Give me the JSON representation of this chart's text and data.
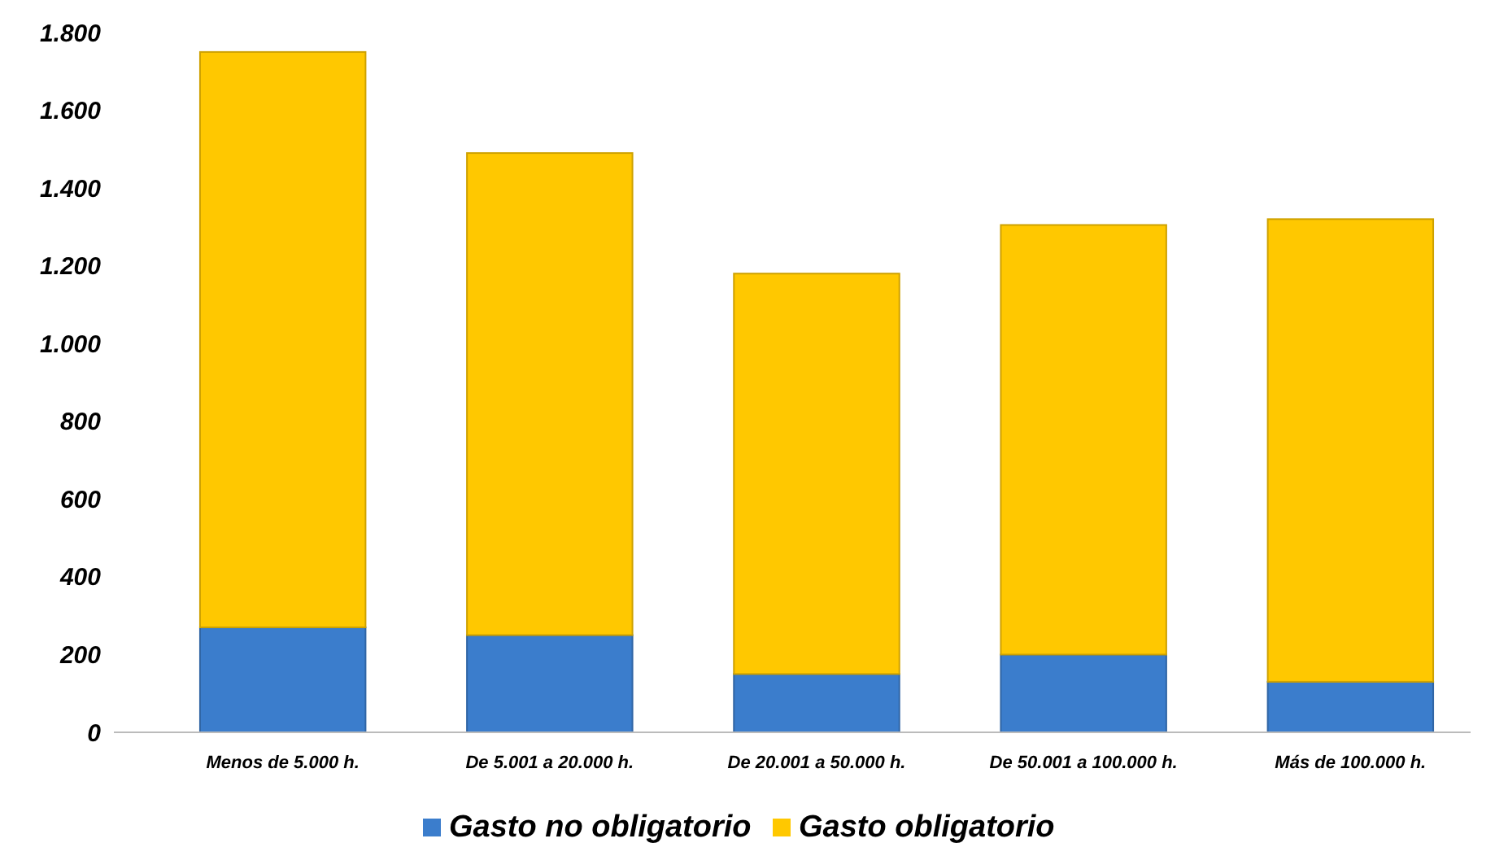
{
  "chart_data": {
    "type": "bar",
    "stacked": true,
    "categories": [
      "Menos de 5.000 h.",
      "De 5.001 a 20.000 h.",
      "De 20.001 a 50.000 h.",
      "De 50.001 a 100.000 h.",
      "Más de 100.000 h."
    ],
    "series": [
      {
        "name": "Gasto no obligatorio",
        "color": "#3b7dcc",
        "values": [
          270,
          250,
          150,
          200,
          130
        ]
      },
      {
        "name": "Gasto obligatorio",
        "color": "#ffc800",
        "values": [
          1480,
          1240,
          1030,
          1105,
          1190
        ]
      }
    ],
    "ylim": [
      0,
      1800
    ],
    "yticks": [
      {
        "value": 0,
        "label": "0"
      },
      {
        "value": 200,
        "label": "200"
      },
      {
        "value": 400,
        "label": "400"
      },
      {
        "value": 600,
        "label": "600"
      },
      {
        "value": 800,
        "label": "800"
      },
      {
        "value": 1000,
        "label": "1.000"
      },
      {
        "value": 1200,
        "label": "1.200"
      },
      {
        "value": 1400,
        "label": "1.400"
      },
      {
        "value": 1600,
        "label": "1.600"
      },
      {
        "value": 1800,
        "label": "1.800"
      }
    ],
    "grid": false,
    "legend": "bottom"
  }
}
